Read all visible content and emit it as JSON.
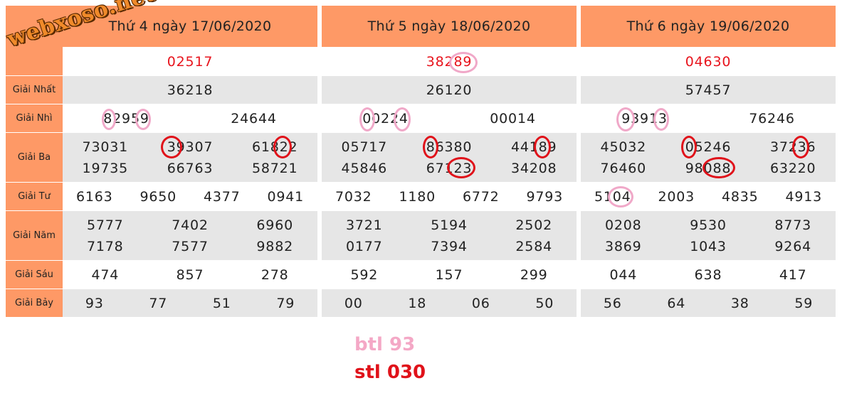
{
  "labels": [
    "",
    "Giải Nhất",
    "Giải Nhì",
    "Giải Ba",
    "Giải Tư",
    "Giải Năm",
    "Giải Sáu",
    "Giải Bảy"
  ],
  "watermark": "webxoso.net",
  "panels": [
    {
      "header": "Thứ 4 ngày 17/06/2020",
      "special": "02517",
      "first": "36218",
      "second": [
        "82959",
        "24644"
      ],
      "third": [
        "73031",
        "39307",
        "61822",
        "19735",
        "66763",
        "58721"
      ],
      "fourth": [
        "6163",
        "9650",
        "4377",
        "0941"
      ],
      "fifth": [
        "5777",
        "7402",
        "6960",
        "7178",
        "7577",
        "9882"
      ],
      "sixth": [
        "474",
        "857",
        "278"
      ],
      "seventh": [
        "93",
        "77",
        "51",
        "79"
      ]
    },
    {
      "header": "Thứ 5 ngày 18/06/2020",
      "special": "38289",
      "first": "26120",
      "second": [
        "00224",
        "00014"
      ],
      "third": [
        "05717",
        "86380",
        "44189",
        "45846",
        "67123",
        "34208"
      ],
      "fourth": [
        "7032",
        "1180",
        "6772",
        "9793"
      ],
      "fifth": [
        "3721",
        "5194",
        "2502",
        "0177",
        "7394",
        "2584"
      ],
      "sixth": [
        "592",
        "157",
        "299"
      ],
      "seventh": [
        "00",
        "18",
        "06",
        "50"
      ]
    },
    {
      "header": "Thứ 6 ngày 19/06/2020",
      "special": "04630",
      "first": "57457",
      "second": [
        "93913",
        "76246"
      ],
      "third": [
        "45032",
        "05246",
        "37236",
        "76460",
        "98088",
        "63220"
      ],
      "fourth": [
        "5104",
        "2003",
        "4835",
        "4913"
      ],
      "fifth": [
        "0208",
        "9530",
        "8773",
        "3869",
        "1043",
        "9264"
      ],
      "sixth": [
        "044",
        "638",
        "417"
      ],
      "seventh": [
        "56",
        "64",
        "38",
        "59"
      ]
    }
  ],
  "footer": {
    "btl": "btl 93",
    "stl": "stl 030",
    "btl_color": "#f4a8c6",
    "stl_color": "#e0121a"
  },
  "colors": {
    "header_bg": "#fe9966",
    "row_gray": "#e6e6e6",
    "special_red": "#e8141d"
  }
}
